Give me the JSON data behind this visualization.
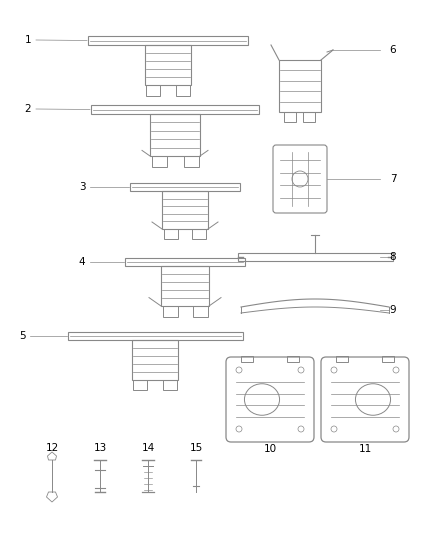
{
  "bg_color": "#ffffff",
  "line_color": "#888888",
  "text_color": "#000000",
  "fig_width": 4.38,
  "fig_height": 5.33,
  "dpi": 100,
  "label_fontsize": 7.5
}
